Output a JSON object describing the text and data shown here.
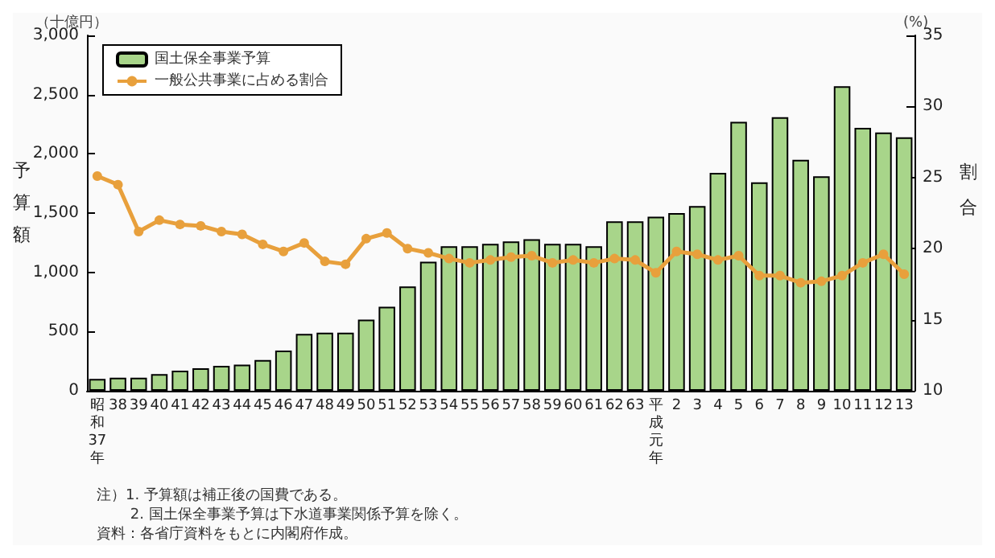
{
  "chart_data": {
    "type": "bar",
    "ylabel": "予算額",
    "y2label": "割合",
    "categories": [
      "昭和37年",
      "38",
      "39",
      "40",
      "41",
      "42",
      "43",
      "44",
      "45",
      "46",
      "47",
      "48",
      "49",
      "50",
      "51",
      "52",
      "53",
      "54",
      "55",
      "56",
      "57",
      "58",
      "59",
      "60",
      "61",
      "62",
      "63",
      "平成元年",
      "2",
      "3",
      "4",
      "5",
      "6",
      "7",
      "8",
      "9",
      "10",
      "11",
      "12",
      "13"
    ],
    "series": [
      {
        "name": "国土保全事業予算",
        "color": "#a8d58a",
        "values": [
          100,
          110,
          110,
          140,
          170,
          190,
          210,
          220,
          260,
          340,
          480,
          490,
          490,
          600,
          710,
          880,
          1090,
          1220,
          1220,
          1240,
          1260,
          1280,
          1240,
          1240,
          1220,
          1430,
          1430,
          1470,
          1500,
          1560,
          1840,
          2270,
          1760,
          2310,
          1950,
          1810,
          2570,
          2220,
          2180,
          2140
        ]
      },
      {
        "name": "一般公共事業に占める割合",
        "type": "line",
        "axis": "y2",
        "color": "#e8a03c",
        "marker": "circle",
        "values": [
          25.1,
          24.5,
          21.2,
          22.0,
          21.7,
          21.6,
          21.2,
          21.0,
          20.3,
          19.8,
          20.4,
          19.1,
          18.9,
          20.7,
          21.1,
          20.0,
          19.7,
          19.3,
          19.0,
          19.2,
          19.4,
          19.5,
          19.0,
          19.2,
          19.0,
          19.3,
          19.2,
          18.3,
          19.8,
          19.6,
          19.2,
          19.5,
          18.1,
          18.1,
          17.6,
          17.7,
          18.1,
          19.0,
          19.6,
          18.2
        ]
      }
    ],
    "ylim": [
      0,
      3000
    ],
    "yticks": [
      0,
      500,
      {
        "value": 1000,
        "label": "1,000"
      },
      {
        "value": 1500,
        "label": "1,500"
      },
      {
        "value": 2000,
        "label": "2,000"
      },
      {
        "value": 2500,
        "label": "2,500"
      },
      {
        "value": 3000,
        "label": "3,000"
      }
    ],
    "y2lim": [
      10,
      35
    ],
    "y2ticks": [
      10,
      15,
      20,
      25,
      30,
      35
    ],
    "grid": false,
    "legend": "top left",
    "annotations": [
      "（十億円）",
      "(%)",
      "注）1. 予算額は補正後の国費である。",
      "　　 2. 国土保全事業予算は下水道事業関係予算を除く。",
      "資料：各省庁資料をもとに内閣府作成。"
    ]
  }
}
